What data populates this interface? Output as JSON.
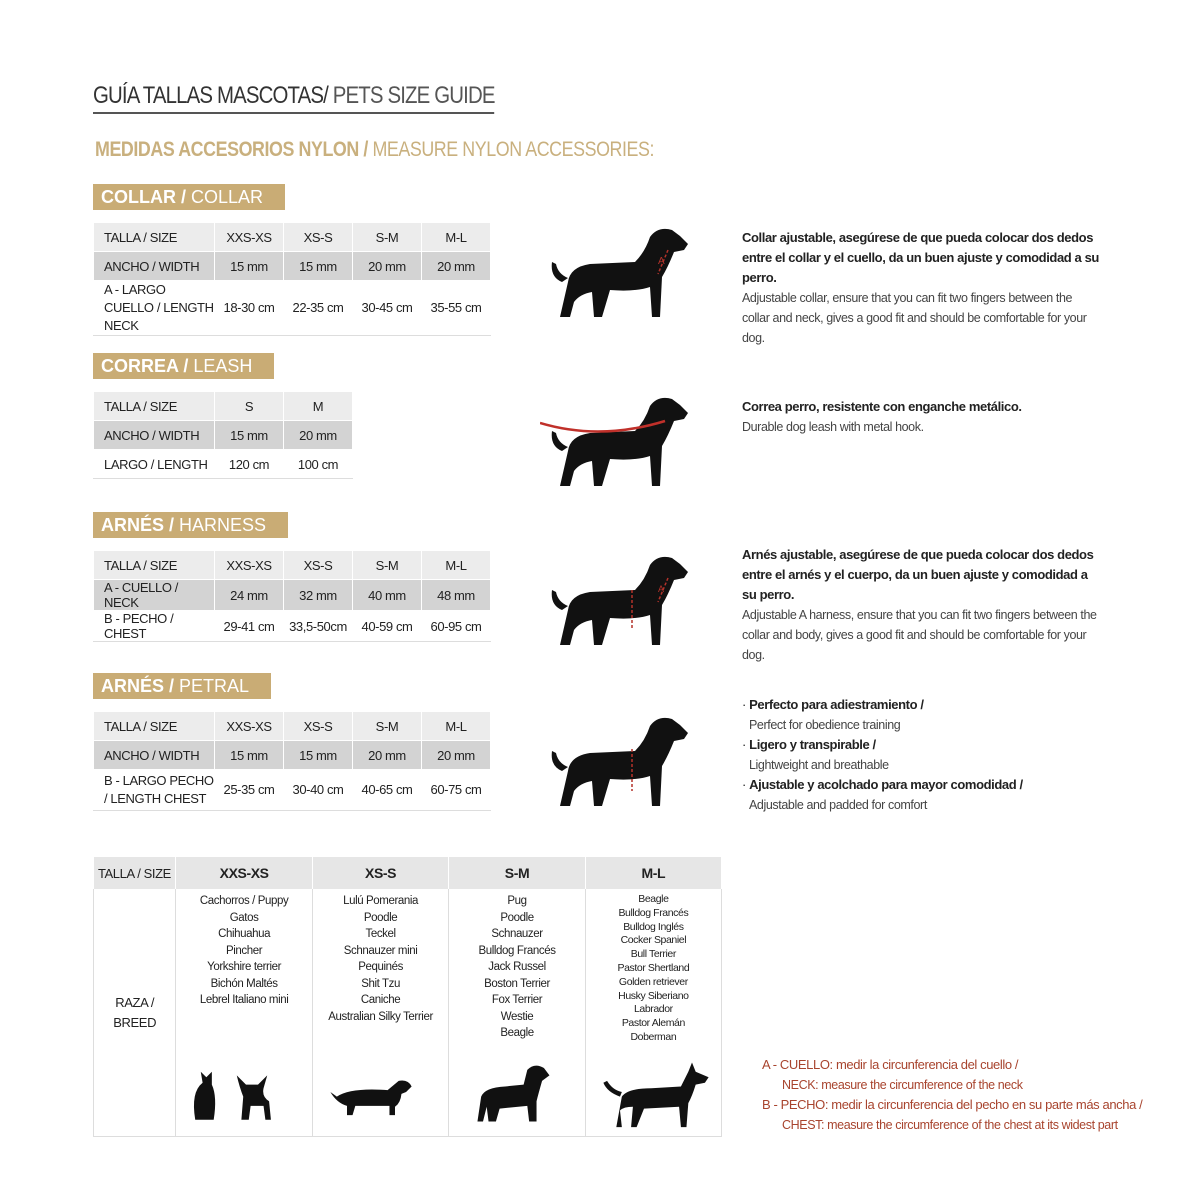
{
  "title": {
    "es": "GUÍA TALLAS MASCOTAS/",
    "en": " PETS SIZE GUIDE"
  },
  "subtitle": {
    "es": "MEDIDAS ACCESORIOS NYLON / ",
    "en": "MEASURE NYLON ACCESSORIES:"
  },
  "colors": {
    "gold": "#c9ac75",
    "red": "#a8442e",
    "row_light": "#ececec",
    "row_dark": "#d3d3d3"
  },
  "sections": [
    {
      "badge_es": "COLLAR /",
      "badge_en": " COLLAR",
      "header": [
        "TALLA / SIZE",
        "XXS-XS",
        "XS-S",
        "S-M",
        "M-L"
      ],
      "rows": [
        [
          "ANCHO / WIDTH",
          "15 mm",
          "15 mm",
          "20 mm",
          "20 mm"
        ],
        [
          "A - LARGO CUELLO / LENGTH NECK",
          "18-30 cm",
          "22-35 cm",
          "30-45 cm",
          "35-55 cm"
        ]
      ],
      "desc_es": "Collar ajustable, asegúrese de que pueda colocar dos dedos entre el collar y el cuello, da un buen ajuste y comodidad a su perro.",
      "desc_en": "Adjustable collar, ensure that you can fit two fingers between the collar and neck, gives a good fit and should be comfortable for your dog."
    },
    {
      "badge_es": "CORREA /",
      "badge_en": " LEASH",
      "header": [
        "TALLA / SIZE",
        "S",
        "M"
      ],
      "rows": [
        [
          "ANCHO / WIDTH",
          "15 mm",
          "20 mm"
        ],
        [
          "LARGO / LENGTH",
          "120 cm",
          "100 cm"
        ]
      ],
      "desc_es": "Correa perro, resistente con enganche metálico.",
      "desc_en": "Durable dog leash with metal hook."
    },
    {
      "badge_es": "ARNÉS /",
      "badge_en": " HARNESS",
      "header": [
        "TALLA / SIZE",
        "XXS-XS",
        "XS-S",
        "S-M",
        "M-L"
      ],
      "rows": [
        [
          "A - CUELLO / NECK",
          "24 mm",
          "32 mm",
          "40 mm",
          "48 mm"
        ],
        [
          "B - PECHO / CHEST",
          "29-41 cm",
          "33,5-50cm",
          "40-59 cm",
          "60-95 cm"
        ]
      ],
      "desc_es": "Arnés ajustable, asegúrese de que pueda colocar dos dedos entre el arnés y el cuerpo, da un buen ajuste y comodidad a su perro.",
      "desc_en": "Adjustable A harness, ensure that you can fit two fingers between the collar and body, gives a good fit and should be comfortable for your dog."
    },
    {
      "badge_es": "ARNÉS /",
      "badge_en": " PETRAL",
      "header": [
        "TALLA / SIZE",
        "XXS-XS",
        "XS-S",
        "S-M",
        "M-L"
      ],
      "rows": [
        [
          "ANCHO / WIDTH",
          "15 mm",
          "15 mm",
          "20 mm",
          "20 mm"
        ],
        [
          "B - LARGO PECHO / LENGTH CHEST",
          "25-35 cm",
          "30-40 cm",
          "40-65 cm",
          "60-75 cm"
        ]
      ],
      "bullets": [
        {
          "es": "Perfecto para adiestramiento /",
          "en": "Perfect for obedience training"
        },
        {
          "es": "Ligero y transpirable /",
          "en": "Lightweight and breathable"
        },
        {
          "es": "Ajustable y acolchado para mayor comodidad /",
          "en": "Adjustable and padded for comfort"
        }
      ]
    }
  ],
  "breed_table": {
    "header": [
      "TALLA /  SIZE",
      "XXS-XS",
      "XS-S",
      "S-M",
      "M-L"
    ],
    "row_label": "RAZA / BREED",
    "breeds": [
      [
        "Cachorros / Puppy",
        "Gatos",
        "Chihuahua",
        "Pincher",
        "Yorkshire terrier",
        "Bichón Maltés",
        "Lebrel Italiano mini"
      ],
      [
        "Lulú Pomerania",
        "Poodle",
        "Teckel",
        "Schnauzer mini",
        "Pequinés",
        "Shit Tzu",
        "Caniche",
        "Australian Silky Terrier"
      ],
      [
        "Pug",
        "Poodle",
        "Schnauzer",
        "Bulldog Francés",
        "Jack Russel",
        "Boston Terrier",
        "Fox Terrier",
        "Westie",
        "Beagle"
      ],
      [
        "Beagle",
        "Bulldog Francés",
        "Bulldog Inglés",
        "Cocker Spaniel",
        "Bull Terrier",
        "Pastor Shertland",
        "Golden retriever",
        "Husky Siberiano",
        "Labrador",
        "Pastor Alemán",
        "Doberman"
      ]
    ],
    "icons": [
      "cat-and-chihuahua-silhouette",
      "dachshund-silhouette",
      "schnauzer-silhouette",
      "doberman-silhouette"
    ]
  },
  "legend": [
    {
      "es": "A - CUELLO: medir la circunferencia del cuello /",
      "en": "NECK: measure the circumference of the neck"
    },
    {
      "es": "B - PECHO: medir la circunferencia del pecho en su parte más ancha /",
      "en": "CHEST: measure the circumference of the chest at its widest part"
    }
  ]
}
